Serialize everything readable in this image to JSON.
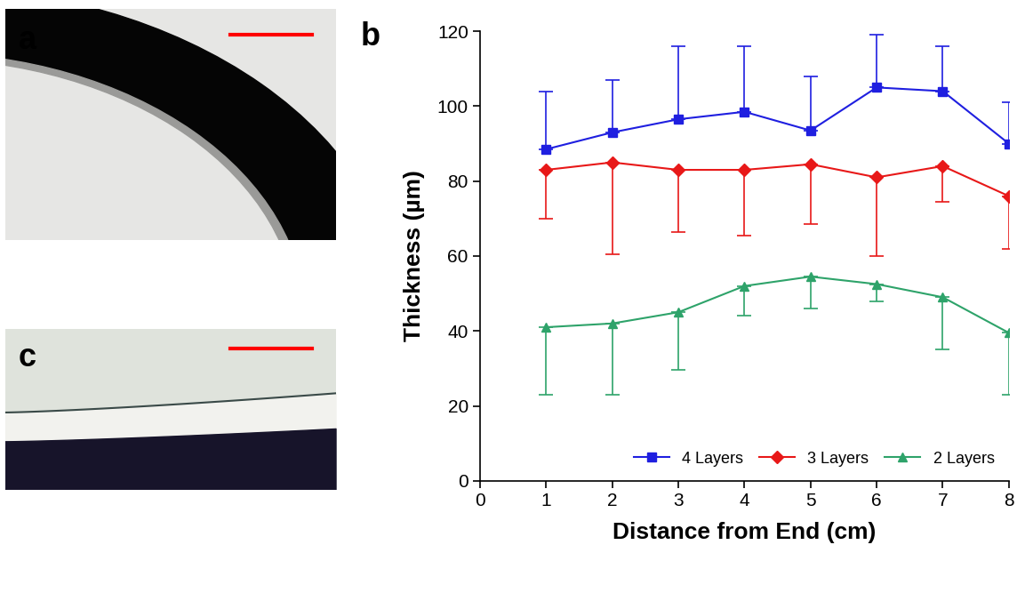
{
  "panel_labels": [
    "a",
    "b",
    "c"
  ],
  "chart_data": {
    "type": "line",
    "x_label": "Distance from End (cm)",
    "y_label": "Thickness (µm)",
    "x": [
      1,
      2,
      3,
      4,
      5,
      6,
      7,
      8
    ],
    "xlim": [
      0,
      8
    ],
    "xticks": [
      0,
      1,
      2,
      3,
      4,
      5,
      6,
      7,
      8
    ],
    "ylim": [
      0,
      120
    ],
    "yticks": [
      0,
      20,
      40,
      60,
      80,
      100,
      120
    ],
    "grid": false,
    "legend": "lower right",
    "series": [
      {
        "name": "4 Layers",
        "color": "#1f1fe0",
        "marker": "square",
        "values": [
          88.5,
          93,
          96.5,
          98.5,
          93.5,
          105,
          104,
          90
        ],
        "error_plus": [
          15.5,
          14,
          19.5,
          17.5,
          14.5,
          14,
          12,
          11
        ]
      },
      {
        "name": "3 Layers",
        "color": "#e81818",
        "marker": "diamond",
        "values": [
          83,
          85,
          83,
          83,
          84.5,
          81,
          84,
          76
        ],
        "error_minus": [
          13,
          24.5,
          16.5,
          17.5,
          16,
          21,
          9.5,
          14
        ]
      },
      {
        "name": "2 Layers",
        "color": "#2ea36a",
        "marker": "triangle",
        "values": [
          41,
          42,
          45,
          52,
          54.5,
          52.5,
          49,
          39.5
        ],
        "error_minus": [
          18,
          19,
          15.5,
          8,
          8.5,
          4.5,
          14,
          16.5
        ]
      }
    ]
  }
}
